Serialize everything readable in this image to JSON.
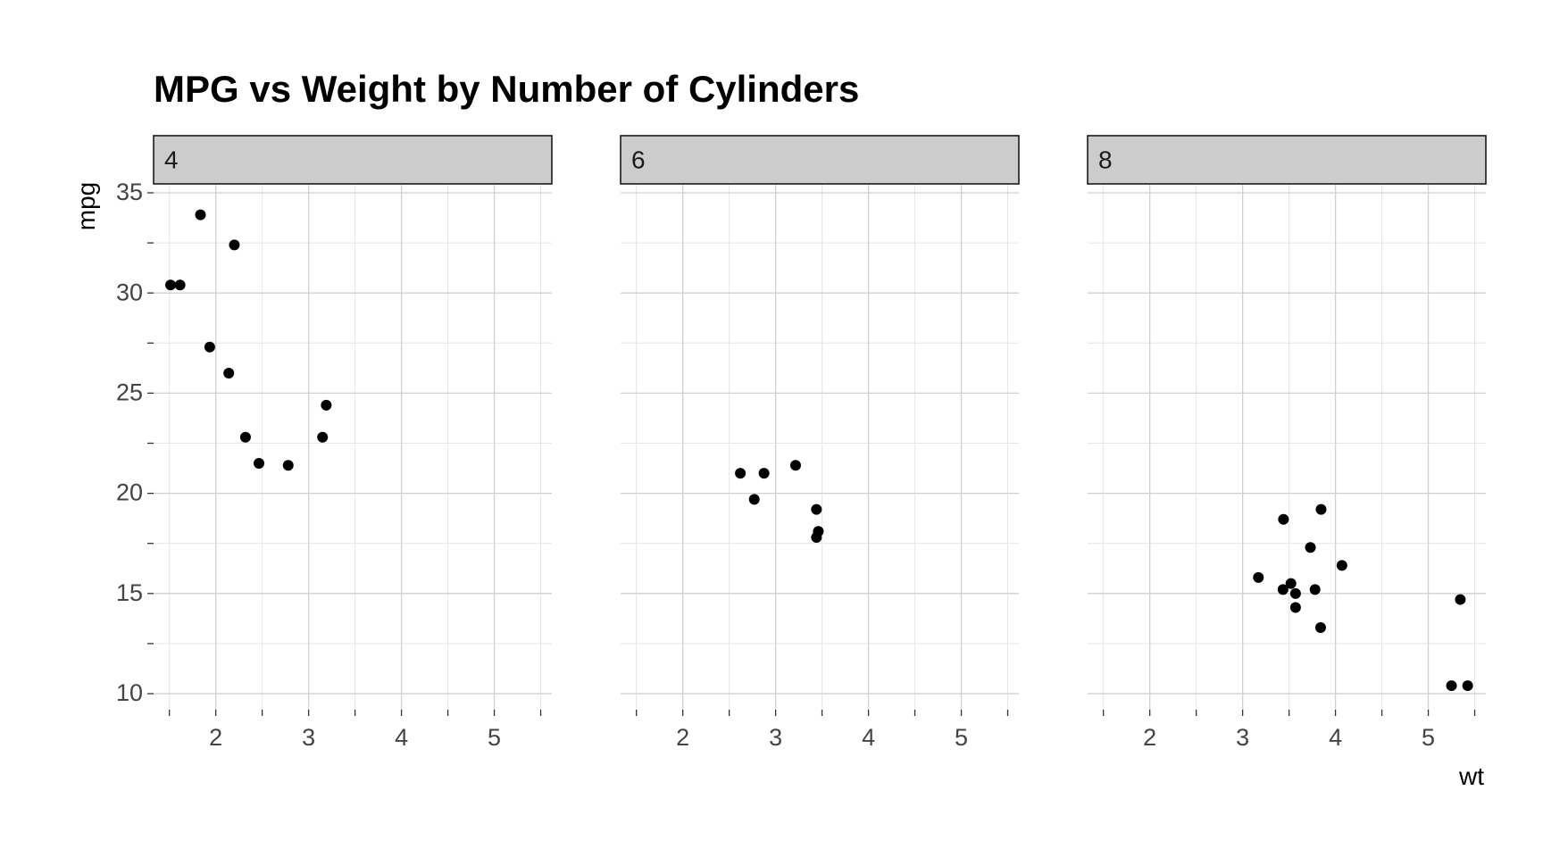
{
  "chart_data": {
    "type": "scatter",
    "title": "MPG vs Weight by Number of Cylinders",
    "xlabel": "wt",
    "ylabel": "mpg",
    "xlim": [
      1.33,
      5.62
    ],
    "ylim": [
      9.2,
      35.4
    ],
    "x_ticks": [
      2,
      3,
      4,
      5
    ],
    "x_tick_labels": [
      "2",
      "3",
      "4",
      "5"
    ],
    "y_ticks": [
      10,
      15,
      20,
      25,
      30,
      35
    ],
    "y_tick_labels": [
      "10",
      "15",
      "20",
      "25",
      "30",
      "35"
    ],
    "grid": true,
    "legend": "none",
    "colors": {
      "point": "#000000",
      "strip": "#cccccc",
      "grid": "#d0d0d0"
    },
    "facets": [
      {
        "label": "4",
        "points": [
          {
            "x": 2.32,
            "y": 22.8
          },
          {
            "x": 3.19,
            "y": 24.4
          },
          {
            "x": 3.15,
            "y": 22.8
          },
          {
            "x": 2.2,
            "y": 32.4
          },
          {
            "x": 1.615,
            "y": 30.4
          },
          {
            "x": 1.835,
            "y": 33.9
          },
          {
            "x": 2.465,
            "y": 21.5
          },
          {
            "x": 1.935,
            "y": 27.3
          },
          {
            "x": 2.14,
            "y": 26.0
          },
          {
            "x": 1.513,
            "y": 30.4
          },
          {
            "x": 2.78,
            "y": 21.4
          }
        ]
      },
      {
        "label": "6",
        "points": [
          {
            "x": 2.62,
            "y": 21.0
          },
          {
            "x": 2.875,
            "y": 21.0
          },
          {
            "x": 3.215,
            "y": 21.4
          },
          {
            "x": 3.46,
            "y": 18.1
          },
          {
            "x": 3.44,
            "y": 19.2
          },
          {
            "x": 3.44,
            "y": 17.8
          },
          {
            "x": 2.77,
            "y": 19.7
          }
        ]
      },
      {
        "label": "8",
        "points": [
          {
            "x": 3.44,
            "y": 18.7
          },
          {
            "x": 3.57,
            "y": 14.3
          },
          {
            "x": 4.07,
            "y": 16.4
          },
          {
            "x": 3.73,
            "y": 17.3
          },
          {
            "x": 3.78,
            "y": 15.2
          },
          {
            "x": 5.25,
            "y": 10.4
          },
          {
            "x": 5.424,
            "y": 10.4
          },
          {
            "x": 5.345,
            "y": 14.7
          },
          {
            "x": 3.52,
            "y": 15.5
          },
          {
            "x": 3.435,
            "y": 15.2
          },
          {
            "x": 3.84,
            "y": 13.3
          },
          {
            "x": 3.845,
            "y": 19.2
          },
          {
            "x": 3.17,
            "y": 15.8
          },
          {
            "x": 3.57,
            "y": 15.0
          }
        ]
      }
    ]
  }
}
